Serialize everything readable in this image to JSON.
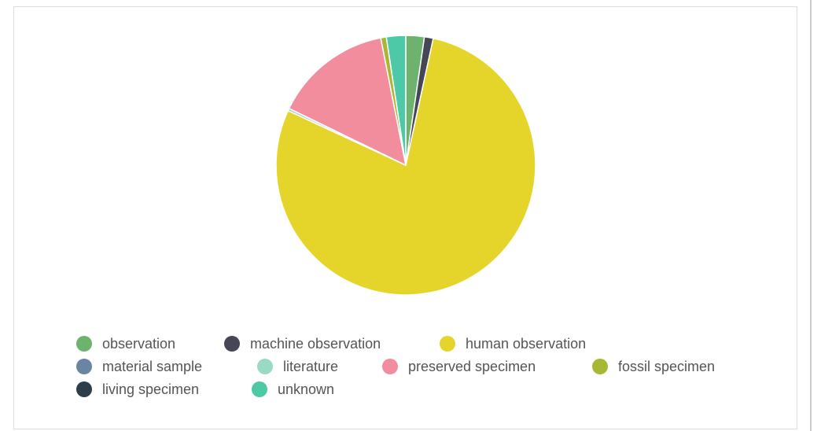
{
  "chart_data": {
    "type": "pie",
    "categories": [
      "observation",
      "machine observation",
      "human observation",
      "material sample",
      "literature",
      "preserved specimen",
      "fossil specimen",
      "living specimen",
      "unknown"
    ],
    "values": [
      2.3,
      1.1,
      78.5,
      0,
      0.3,
      14.7,
      0.7,
      0,
      2.4
    ],
    "colors": [
      "#6db36d",
      "#464657",
      "#e5d52a",
      "#6a84a3",
      "#9ad9c4",
      "#f28d9e",
      "#a8b834",
      "#2c3e4a",
      "#4ec9a8"
    ],
    "legend": "bottom"
  }
}
